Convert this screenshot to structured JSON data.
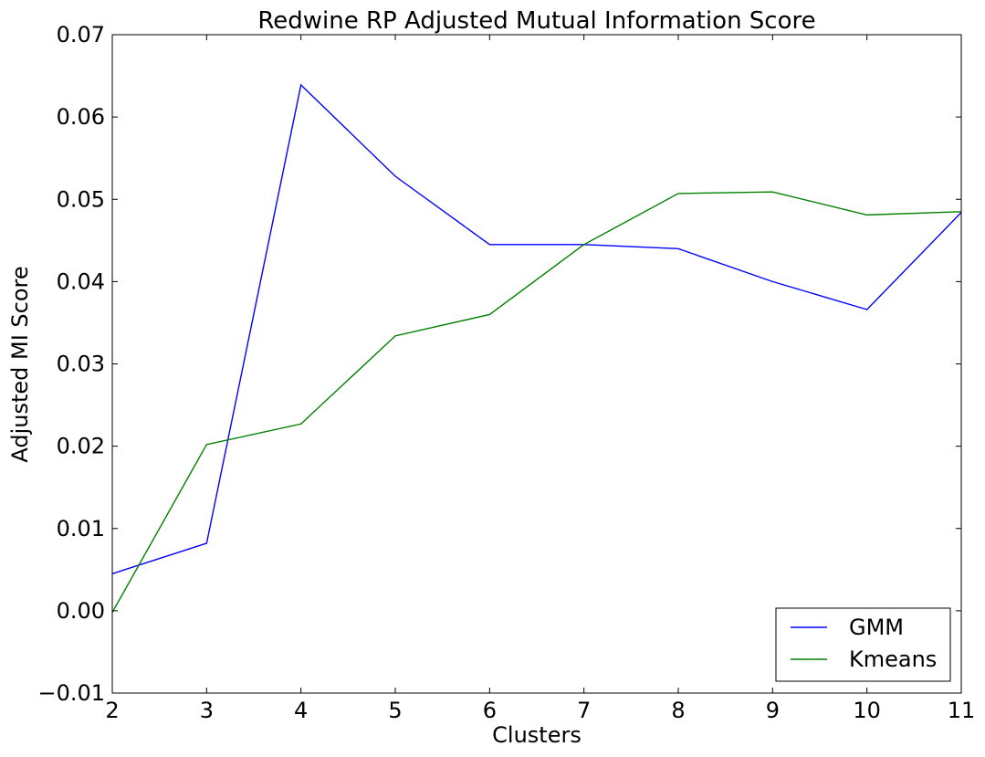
{
  "chart_data": {
    "type": "line",
    "title": "Redwine RP Adjusted Mutual Information Score",
    "xlabel": "Clusters",
    "ylabel": "Adjusted MI Score",
    "x": [
      2,
      3,
      4,
      5,
      6,
      7,
      8,
      9,
      10,
      11
    ],
    "xlim": [
      2,
      11
    ],
    "ylim": [
      -0.01,
      0.07
    ],
    "xticks": [
      2,
      3,
      4,
      5,
      6,
      7,
      8,
      9,
      10,
      11
    ],
    "xtick_labels": [
      "2",
      "3",
      "4",
      "5",
      "6",
      "7",
      "8",
      "9",
      "10",
      "11"
    ],
    "yticks": [
      -0.01,
      0.0,
      0.01,
      0.02,
      0.03,
      0.04,
      0.05,
      0.06,
      0.07
    ],
    "ytick_labels": [
      "−0.01",
      "0.00",
      "0.01",
      "0.02",
      "0.03",
      "0.04",
      "0.05",
      "0.06",
      "0.07"
    ],
    "grid": false,
    "legend_position": "bottom-right",
    "series": [
      {
        "name": "GMM",
        "color": "#0000ff",
        "values": [
          0.0045,
          0.0082,
          0.0639,
          0.0528,
          0.0445,
          0.0445,
          0.044,
          0.04,
          0.0366,
          0.0484
        ]
      },
      {
        "name": "Kmeans",
        "color": "#008000",
        "values": [
          -0.0002,
          0.0202,
          0.0227,
          0.0334,
          0.036,
          0.0445,
          0.0507,
          0.0509,
          0.0481,
          0.0485
        ]
      }
    ]
  }
}
